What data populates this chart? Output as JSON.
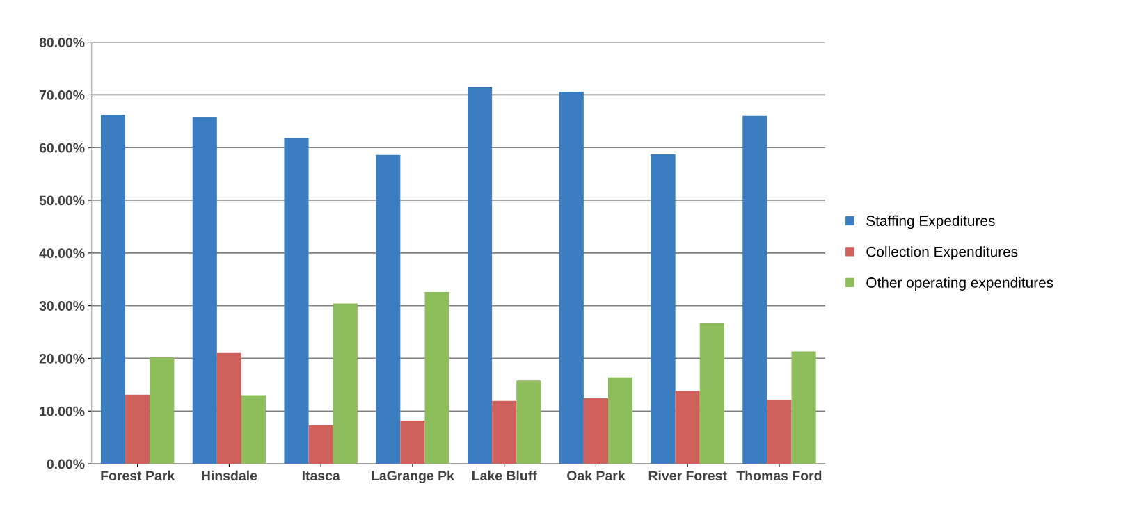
{
  "chart_data": {
    "type": "bar",
    "categories": [
      "Forest Park",
      "Hinsdale",
      "Itasca",
      "LaGrange Pk",
      "Lake Bluff",
      "Oak Park",
      "River Forest",
      "Thomas Ford"
    ],
    "series": [
      {
        "name": "Staffing Expeditures",
        "color": "#3a7dc0",
        "values": [
          66.2,
          65.8,
          61.8,
          58.6,
          71.5,
          70.6,
          58.7,
          66.0
        ]
      },
      {
        "name": "Collection Expenditures",
        "color": "#d0605c",
        "values": [
          13.1,
          21.0,
          7.3,
          8.2,
          11.9,
          12.4,
          13.8,
          12.1
        ]
      },
      {
        "name": "Other operating expenditures",
        "color": "#8ebd5c",
        "values": [
          20.2,
          13.0,
          30.4,
          32.6,
          15.8,
          16.4,
          26.7,
          21.3
        ]
      }
    ],
    "ylim": [
      0,
      80
    ],
    "yticks": [
      {
        "value": 0,
        "label": "0.00%"
      },
      {
        "value": 10,
        "label": "10.00%"
      },
      {
        "value": 20,
        "label": "20.00%"
      },
      {
        "value": 30,
        "label": "30.00%"
      },
      {
        "value": 40,
        "label": "40.00%"
      },
      {
        "value": 50,
        "label": "50.00%"
      },
      {
        "value": 60,
        "label": "60.00%"
      },
      {
        "value": 70,
        "label": "70.00%"
      },
      {
        "value": 80,
        "label": "80.00%"
      }
    ],
    "grid": "y",
    "legend": "right"
  }
}
